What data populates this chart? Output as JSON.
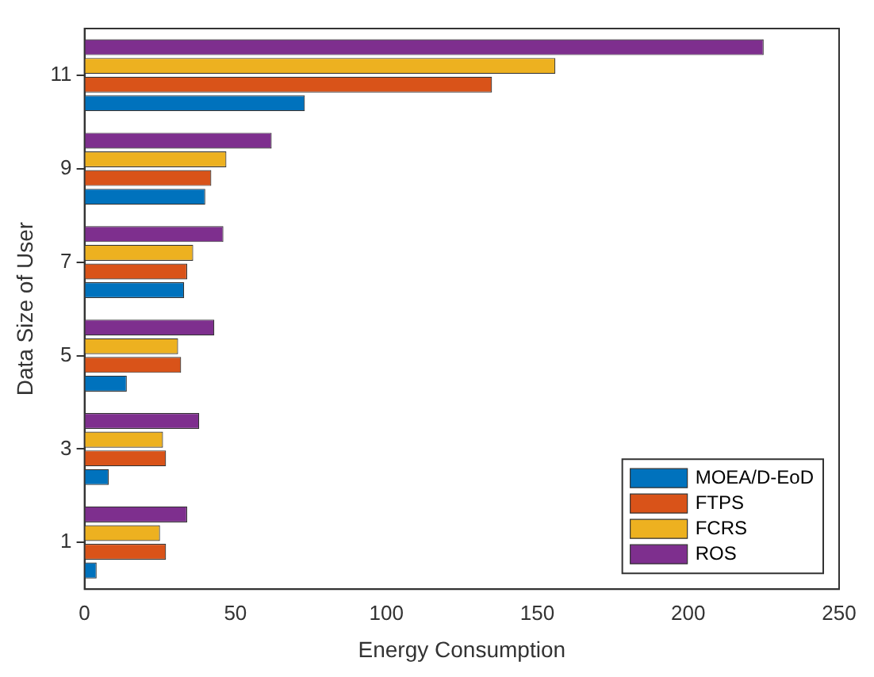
{
  "chart_data": {
    "type": "bar",
    "orientation": "horizontal",
    "xlabel": "Energy Consumption",
    "ylabel": "Data Size of User",
    "categories": [
      "11",
      "9",
      "7",
      "5",
      "3",
      "1"
    ],
    "series": [
      {
        "name": "MOEA/D-EoD",
        "color": "#0072bd",
        "values": [
          73,
          40,
          33,
          14,
          8,
          4
        ]
      },
      {
        "name": "FTPS",
        "color": "#d95319",
        "values": [
          135,
          42,
          34,
          32,
          27,
          27
        ]
      },
      {
        "name": "FCRS",
        "color": "#edb120",
        "values": [
          156,
          47,
          36,
          31,
          26,
          25
        ]
      },
      {
        "name": "ROS",
        "color": "#7e2f8e",
        "values": [
          225,
          62,
          46,
          43,
          38,
          34
        ]
      }
    ],
    "xlim": [
      0,
      250
    ],
    "xticks": [
      0,
      50,
      100,
      150,
      200,
      250
    ],
    "grid": false,
    "legend": "bottom right"
  }
}
